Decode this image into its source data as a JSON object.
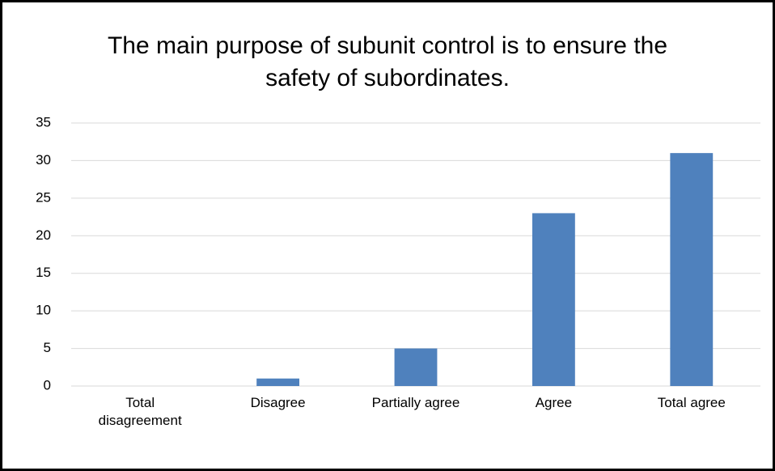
{
  "chart_data": {
    "type": "bar",
    "title": "The main purpose of subunit control is to ensure the safety of subordinates.",
    "categories": [
      "Total disagreement",
      "Disagree",
      "Partially agree",
      "Agree",
      "Total agree"
    ],
    "values": [
      0,
      1,
      5,
      23,
      31
    ],
    "color": "#4f81bd",
    "ylim": [
      0,
      35
    ],
    "yticks": [
      0,
      5,
      10,
      15,
      20,
      25,
      30,
      35
    ],
    "grid": true
  }
}
